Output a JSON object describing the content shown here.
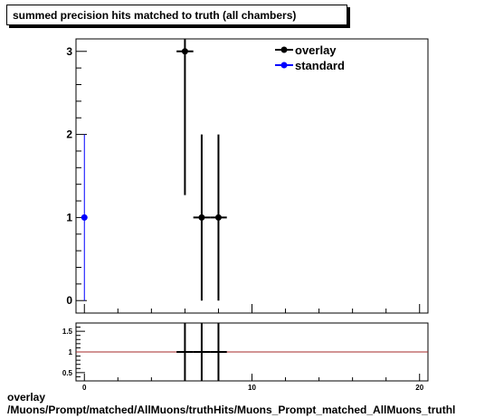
{
  "title": "summed precision hits matched to truth (all chambers)",
  "footer": {
    "line1": "overlay",
    "line2": "/Muons/Prompt/matched/AllMuons/truthHits/Muons_Prompt_matched_AllMuons_truthl"
  },
  "chart_data": [
    {
      "type": "scatter",
      "title": "summed precision hits matched to truth (all chambers)",
      "xlim": [
        -0.5,
        20.5
      ],
      "ylim": [
        -0.15,
        3.15
      ],
      "yticks": [
        0,
        1,
        2,
        3
      ],
      "series": [
        {
          "name": "overlay",
          "color": "#000000",
          "points": [
            {
              "x": 6,
              "y": 3,
              "xerr": 0.5,
              "ylo": 1.27,
              "yhi": 3.15
            },
            {
              "x": 7,
              "y": 1,
              "xerr": 0.5,
              "ylo": 0,
              "yhi": 2
            },
            {
              "x": 8,
              "y": 1,
              "xerr": 0.5,
              "ylo": 0,
              "yhi": 2
            }
          ]
        },
        {
          "name": "standard",
          "color": "#0000ff",
          "points": [
            {
              "x": 0,
              "y": 1,
              "xerr": 0.0,
              "ylo": 0,
              "yhi": 2
            }
          ]
        }
      ],
      "legend": "top-right"
    },
    {
      "type": "line",
      "xlim": [
        -0.5,
        20.5
      ],
      "ylim": [
        0.3,
        1.7
      ],
      "xticks": [
        0,
        10,
        20
      ],
      "yticks": [
        0.5,
        1,
        1.5
      ],
      "ytick_labels": [
        "0.5",
        "1",
        "1.5"
      ],
      "reference_line": {
        "y": 1,
        "color": "#a52a2a"
      },
      "ratio_points": [
        {
          "x": 6,
          "y": 1,
          "xerr": 0.5
        },
        {
          "x": 7,
          "y": 1,
          "xerr": 0.5
        },
        {
          "x": 8,
          "y": 1,
          "xerr": 0.5
        }
      ]
    }
  ]
}
